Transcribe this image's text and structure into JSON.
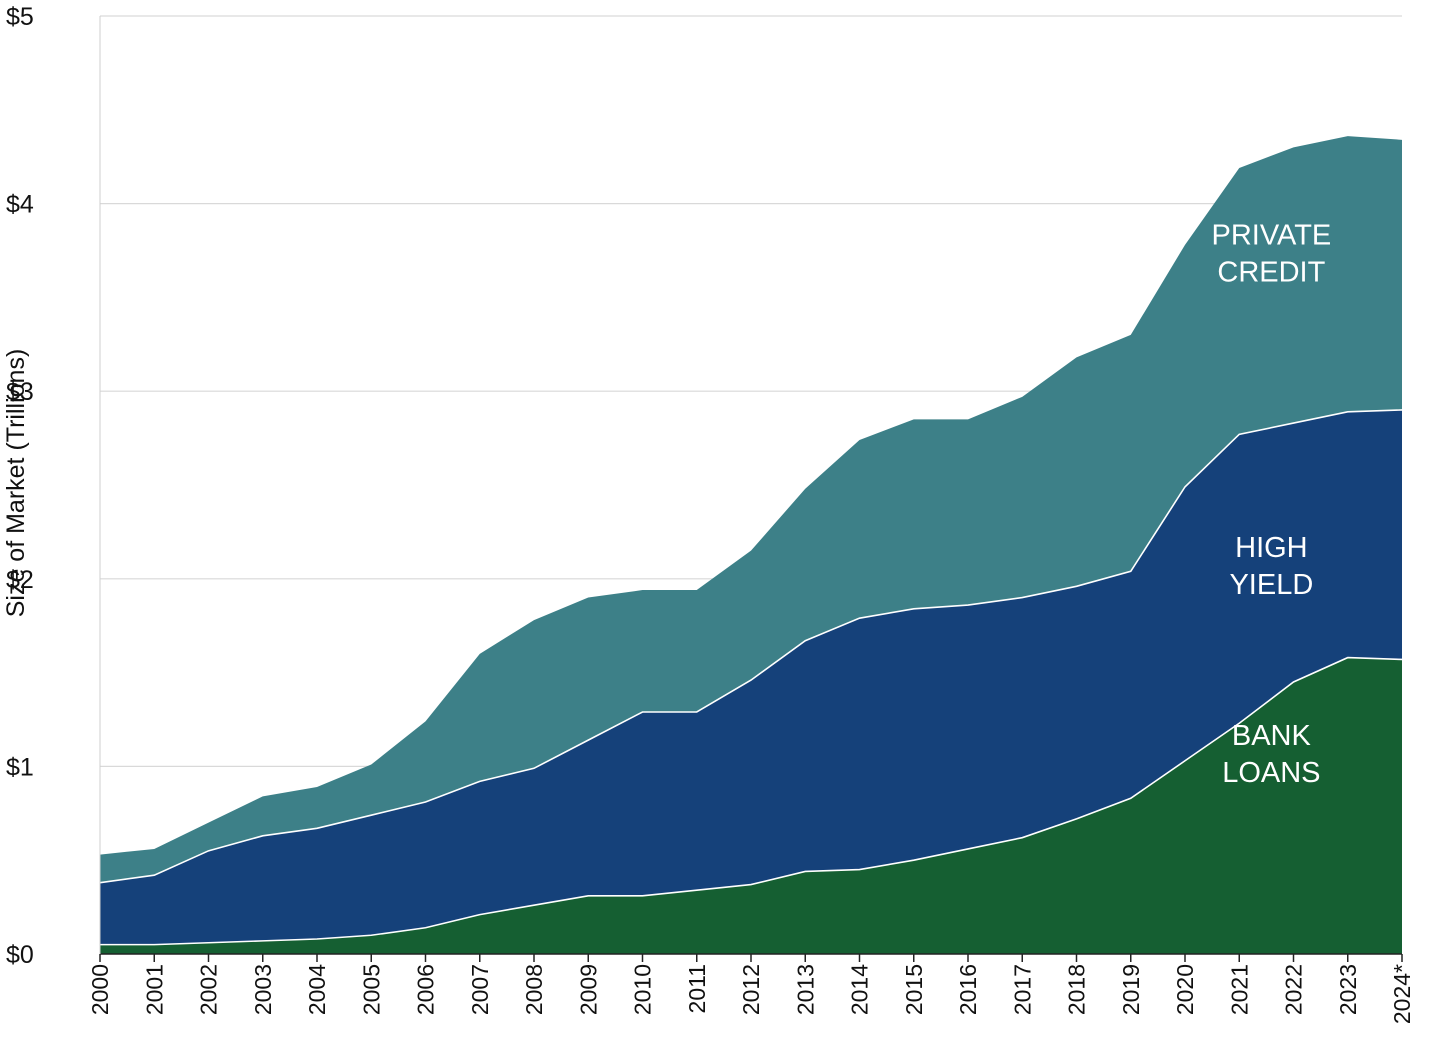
{
  "chart_data": {
    "type": "area",
    "stacked": true,
    "title": "",
    "xlabel": "",
    "ylabel": "Size of Market (Trillions)",
    "ylim": [
      0,
      5
    ],
    "grid": true,
    "legend": "inline",
    "categories": [
      "2000",
      "2001",
      "2002",
      "2003",
      "2004",
      "2005",
      "2006",
      "2007",
      "2008",
      "2009",
      "2010",
      "2011",
      "2012",
      "2013",
      "2014",
      "2015",
      "2016",
      "2017",
      "2018",
      "2019",
      "2020",
      "2021",
      "2022",
      "2023",
      "2024*"
    ],
    "y_ticks": [
      "$0",
      "$1",
      "$2",
      "$3",
      "$4",
      "$5"
    ],
    "series": [
      {
        "name": "BANK LOANS",
        "label_lines": [
          "BANK",
          "LOANS"
        ],
        "color": "#155f32",
        "values": [
          0.05,
          0.05,
          0.06,
          0.07,
          0.08,
          0.1,
          0.14,
          0.21,
          0.26,
          0.31,
          0.31,
          0.34,
          0.37,
          0.44,
          0.45,
          0.5,
          0.56,
          0.62,
          0.72,
          0.83,
          1.03,
          1.23,
          1.45,
          1.58,
          1.57
        ]
      },
      {
        "name": "HIGH YIELD",
        "label_lines": [
          "HIGH",
          "YIELD"
        ],
        "color": "#15417a",
        "values": [
          0.33,
          0.37,
          0.49,
          0.56,
          0.59,
          0.64,
          0.67,
          0.71,
          0.73,
          0.83,
          0.98,
          0.95,
          1.09,
          1.23,
          1.34,
          1.34,
          1.3,
          1.28,
          1.24,
          1.21,
          1.46,
          1.54,
          1.38,
          1.31,
          1.33
        ]
      },
      {
        "name": "PRIVATE CREDIT",
        "label_lines": [
          "PRIVATE",
          "CREDIT"
        ],
        "color": "#3d8088",
        "values": [
          0.15,
          0.14,
          0.15,
          0.21,
          0.22,
          0.27,
          0.43,
          0.68,
          0.79,
          0.76,
          0.65,
          0.65,
          0.69,
          0.81,
          0.95,
          1.01,
          0.99,
          1.07,
          1.22,
          1.26,
          1.29,
          1.42,
          1.47,
          1.47,
          1.44
        ]
      }
    ]
  }
}
